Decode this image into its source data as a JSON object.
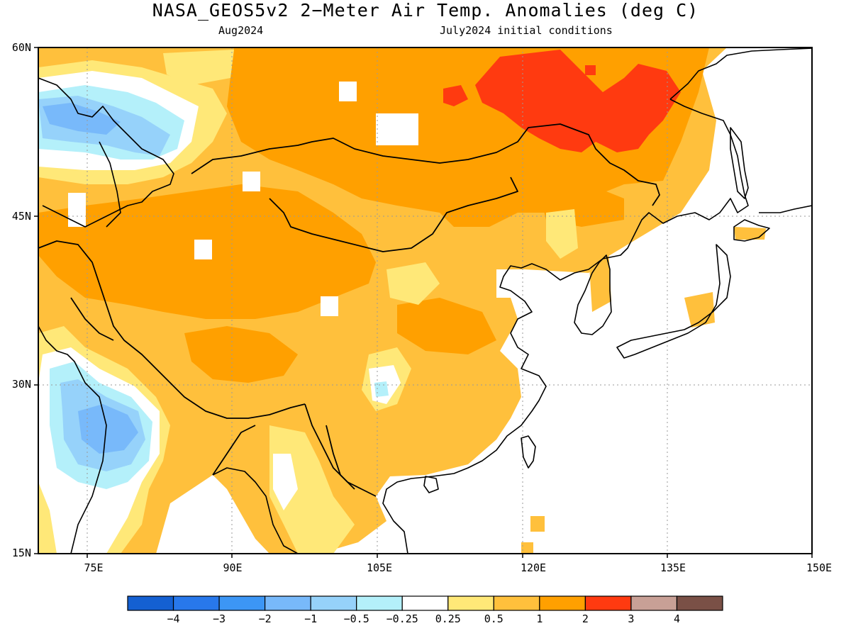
{
  "title": "NASA_GEOS5v2 2−Meter Air Temp. Anomalies (deg C)",
  "subtitle_left": "Aug2024",
  "subtitle_right": "July2024 initial conditions",
  "lat_ticks": [
    "60N",
    "45N",
    "30N",
    "15N"
  ],
  "lon_ticks": [
    "75E",
    "90E",
    "105E",
    "120E",
    "135E",
    "150E"
  ],
  "colorbar": {
    "colors": [
      "#1460d2",
      "#2878eb",
      "#3c96f5",
      "#78b9fa",
      "#96d2fa",
      "#b4f0fa",
      "#ffffff",
      "#ffe878",
      "#ffc03c",
      "#ffa000",
      "#ff3a10",
      "#c8a096",
      "#7a5046"
    ],
    "labels": [
      "−4",
      "−3",
      "−2",
      "−1",
      "−0.5",
      "−0.25",
      "0.25",
      "0.5",
      "1",
      "2",
      "3",
      "4"
    ]
  }
}
